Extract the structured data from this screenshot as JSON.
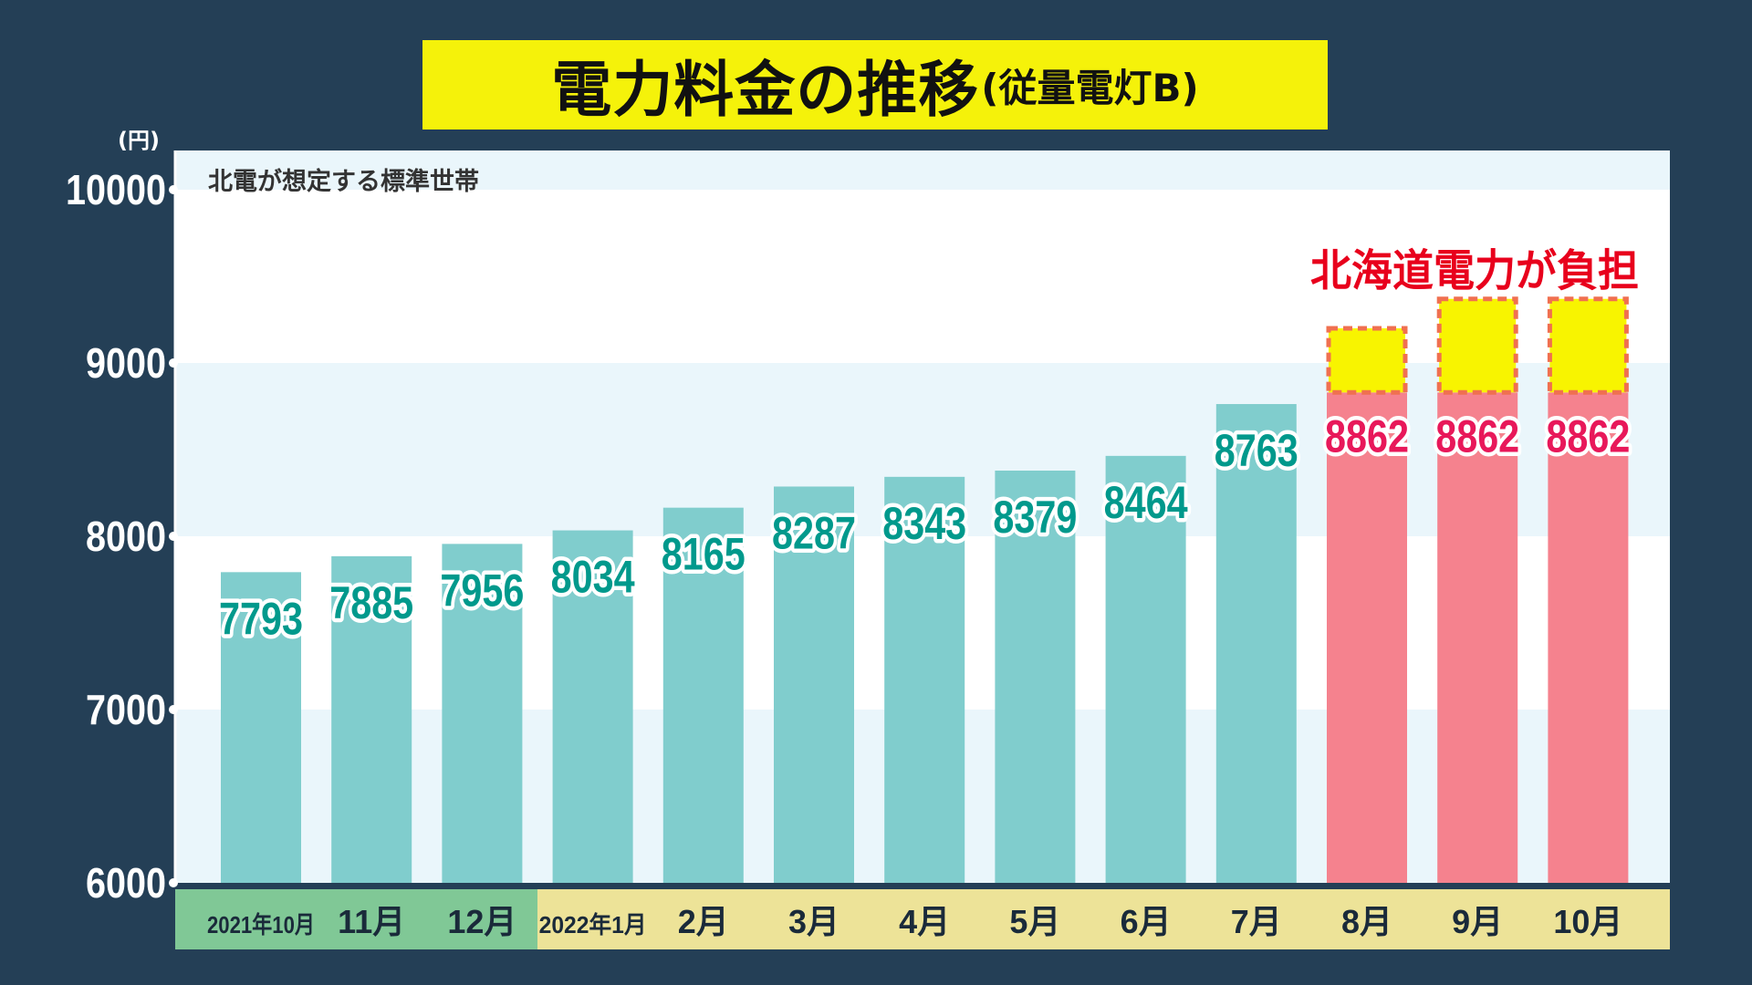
{
  "title": {
    "main": "電力料金の推移",
    "sub": "(従量電灯B)"
  },
  "chart_data": {
    "type": "bar",
    "categories": [
      "2021年10月",
      "11月",
      "12月",
      "2022年1月",
      "2月",
      "3月",
      "4月",
      "5月",
      "6月",
      "7月",
      "8月",
      "9月",
      "10月"
    ],
    "values": [
      7793,
      7885,
      7956,
      8034,
      8165,
      8287,
      8343,
      8379,
      8464,
      8763,
      8862,
      8862,
      8862
    ],
    "data_labels": [
      "7793",
      "7885",
      "7956",
      "8034",
      "8165",
      "8287",
      "8343",
      "8379",
      "8464",
      "8763",
      "8862",
      "8862",
      "8862"
    ],
    "subsidy_top_values": [
      null,
      null,
      null,
      null,
      null,
      null,
      null,
      null,
      null,
      null,
      9200,
      9370,
      9370
    ],
    "y_unit": "(円)",
    "ylim": [
      6000,
      10000
    ],
    "y_ticks": [
      6000,
      7000,
      8000,
      9000,
      10000
    ],
    "y_tick_labels": [
      "6000",
      "7000",
      "8000",
      "9000",
      "10000"
    ],
    "note": "北電が想定する標準世帯",
    "annotation": "北海道電力が負担",
    "grid": true,
    "colors": {
      "bar_normal": "#80cdcd",
      "bar_highlight": "#f5828e",
      "label_normal": "#00998c",
      "label_highlight": "#e8185a",
      "subsidy_fill": "#f8f400",
      "subsidy_border": "#f07050",
      "band_light": "#eaf6fb",
      "band_white": "#ffffff",
      "xbar_2021": "#80c896",
      "xbar_2022": "#ede398"
    }
  }
}
